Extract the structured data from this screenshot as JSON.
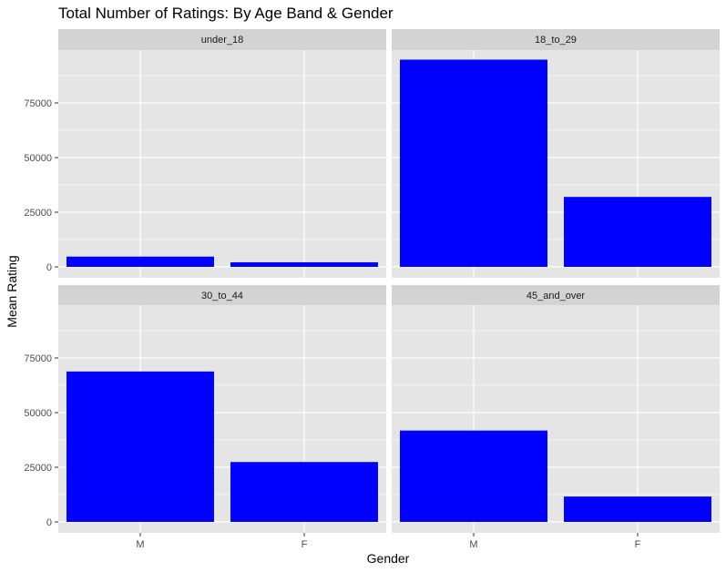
{
  "chart_data": {
    "type": "bar",
    "title": "Total Number of Ratings: By Age Band & Gender",
    "xlabel": "Gender",
    "ylabel": "Mean Rating",
    "categories": [
      "M",
      "F"
    ],
    "ylim": [
      0,
      95000
    ],
    "yticks": [
      0,
      25000,
      50000,
      75000
    ],
    "ytick_labels": [
      "0",
      "25000",
      "50000",
      "75000"
    ],
    "bar_color": "#0000FF",
    "panel_bg": "#E5E5E5",
    "strip_bg": "#D3D3D3",
    "facets": [
      {
        "name": "under_18",
        "values": [
          4700,
          2100
        ]
      },
      {
        "name": "18_to_29",
        "values": [
          94800,
          32000
        ]
      },
      {
        "name": "30_to_44",
        "values": [
          68800,
          27400
        ]
      },
      {
        "name": "45_and_over",
        "values": [
          41800,
          11600
        ]
      }
    ]
  }
}
